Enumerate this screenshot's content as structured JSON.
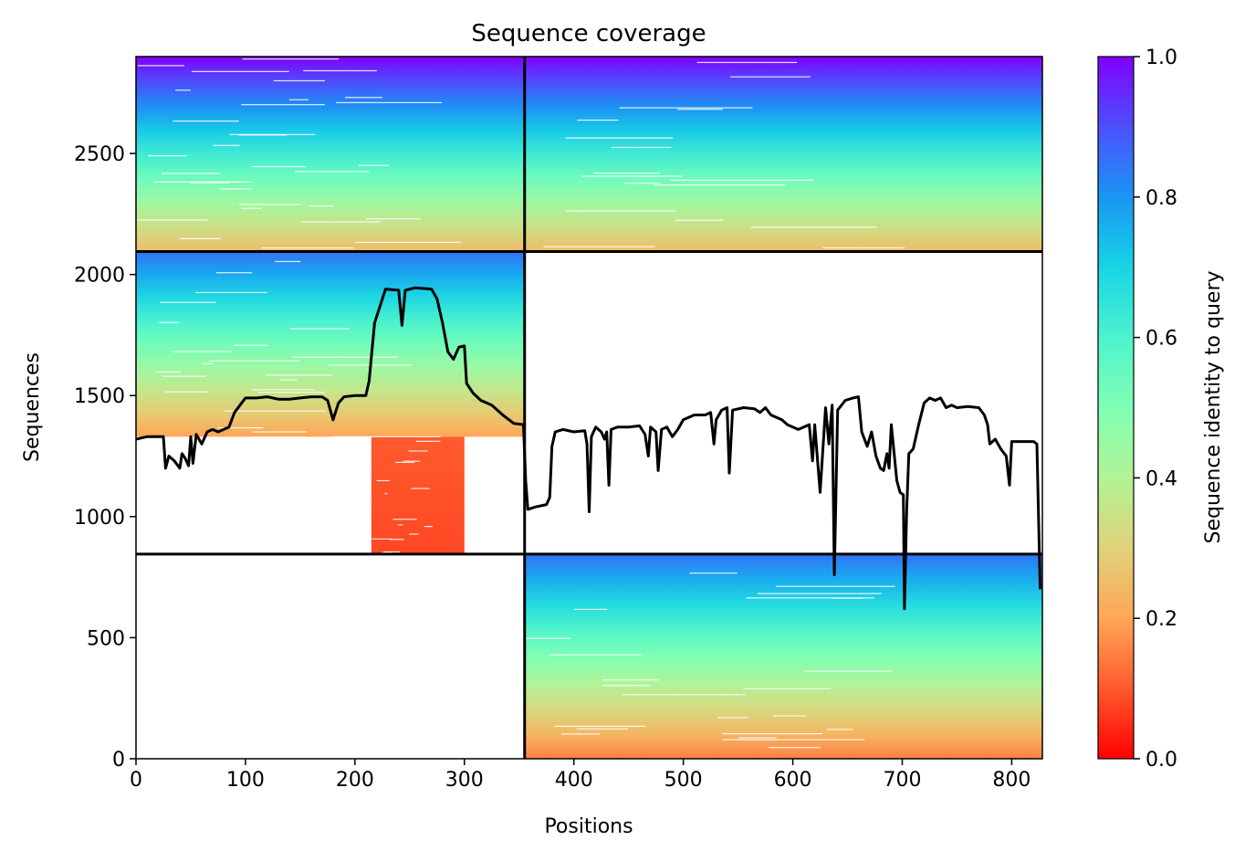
{
  "chart_data": {
    "type": "heatmap",
    "title": "Sequence coverage",
    "xlabel": "Positions",
    "ylabel": "Sequences",
    "xlim": [
      0,
      828
    ],
    "ylim": [
      0,
      2900
    ],
    "xticks": [
      0,
      100,
      200,
      300,
      400,
      500,
      600,
      700,
      800
    ],
    "yticks": [
      0,
      500,
      1000,
      1500,
      2000,
      2500
    ],
    "colormap": "rainbow",
    "colorbar": {
      "label": "Sequence identity to query",
      "range": [
        0,
        1
      ],
      "ticks": [
        0.0,
        0.2,
        0.4,
        0.6,
        0.8,
        1.0
      ],
      "tick_labels": [
        "0.0",
        "0.2",
        "0.4",
        "0.6",
        "0.8",
        "1.0"
      ]
    },
    "domain_boundaries": {
      "x": [
        355
      ],
      "y": [
        845,
        2095
      ]
    },
    "blocks": [
      {
        "x": [
          0,
          355
        ],
        "y": [
          2095,
          2900
        ],
        "identity_bottom": 0.25,
        "identity_top": 1.0
      },
      {
        "x": [
          355,
          828
        ],
        "y": [
          2095,
          2900
        ],
        "identity_bottom": 0.25,
        "identity_top": 1.0
      },
      {
        "x": [
          0,
          355
        ],
        "y": [
          1330,
          2095
        ],
        "identity_bottom": 0.2,
        "identity_top": 0.85
      },
      {
        "x": [
          215,
          300
        ],
        "y": [
          845,
          1330
        ],
        "identity_bottom": 0.08,
        "identity_top": 0.1
      },
      {
        "x": [
          355,
          828
        ],
        "y": [
          0,
          845
        ],
        "identity_bottom": 0.15,
        "identity_top": 0.85
      }
    ],
    "coverage_line": [
      [
        0,
        1320
      ],
      [
        10,
        1330
      ],
      [
        25,
        1330
      ],
      [
        27,
        1200
      ],
      [
        30,
        1250
      ],
      [
        35,
        1230
      ],
      [
        40,
        1200
      ],
      [
        42,
        1260
      ],
      [
        45,
        1240
      ],
      [
        48,
        1210
      ],
      [
        50,
        1330
      ],
      [
        52,
        1220
      ],
      [
        55,
        1340
      ],
      [
        60,
        1300
      ],
      [
        65,
        1350
      ],
      [
        70,
        1360
      ],
      [
        75,
        1350
      ],
      [
        80,
        1360
      ],
      [
        85,
        1370
      ],
      [
        90,
        1430
      ],
      [
        95,
        1460
      ],
      [
        100,
        1490
      ],
      [
        110,
        1490
      ],
      [
        120,
        1495
      ],
      [
        130,
        1485
      ],
      [
        140,
        1485
      ],
      [
        150,
        1490
      ],
      [
        160,
        1495
      ],
      [
        170,
        1495
      ],
      [
        175,
        1480
      ],
      [
        180,
        1400
      ],
      [
        185,
        1470
      ],
      [
        190,
        1495
      ],
      [
        200,
        1500
      ],
      [
        210,
        1500
      ],
      [
        213,
        1560
      ],
      [
        218,
        1800
      ],
      [
        228,
        1940
      ],
      [
        240,
        1935
      ],
      [
        243,
        1790
      ],
      [
        246,
        1935
      ],
      [
        255,
        1945
      ],
      [
        270,
        1940
      ],
      [
        275,
        1900
      ],
      [
        280,
        1800
      ],
      [
        285,
        1680
      ],
      [
        290,
        1650
      ],
      [
        295,
        1700
      ],
      [
        300,
        1705
      ],
      [
        302,
        1550
      ],
      [
        308,
        1510
      ],
      [
        315,
        1480
      ],
      [
        325,
        1460
      ],
      [
        335,
        1420
      ],
      [
        345,
        1385
      ],
      [
        354,
        1380
      ],
      [
        356,
        1150
      ],
      [
        358,
        1030
      ],
      [
        365,
        1040
      ],
      [
        375,
        1050
      ],
      [
        378,
        1080
      ],
      [
        380,
        1290
      ],
      [
        383,
        1350
      ],
      [
        390,
        1360
      ],
      [
        400,
        1350
      ],
      [
        410,
        1355
      ],
      [
        412,
        1300
      ],
      [
        414,
        1020
      ],
      [
        416,
        1330
      ],
      [
        420,
        1370
      ],
      [
        425,
        1350
      ],
      [
        428,
        1320
      ],
      [
        430,
        1350
      ],
      [
        432,
        1130
      ],
      [
        434,
        1360
      ],
      [
        440,
        1370
      ],
      [
        450,
        1370
      ],
      [
        460,
        1375
      ],
      [
        465,
        1340
      ],
      [
        468,
        1250
      ],
      [
        470,
        1370
      ],
      [
        475,
        1350
      ],
      [
        477,
        1190
      ],
      [
        480,
        1360
      ],
      [
        485,
        1370
      ],
      [
        490,
        1330
      ],
      [
        495,
        1360
      ],
      [
        500,
        1400
      ],
      [
        510,
        1420
      ],
      [
        520,
        1420
      ],
      [
        525,
        1430
      ],
      [
        528,
        1300
      ],
      [
        530,
        1400
      ],
      [
        535,
        1440
      ],
      [
        540,
        1450
      ],
      [
        542,
        1180
      ],
      [
        545,
        1440
      ],
      [
        555,
        1450
      ],
      [
        565,
        1445
      ],
      [
        570,
        1430
      ],
      [
        575,
        1450
      ],
      [
        580,
        1420
      ],
      [
        590,
        1400
      ],
      [
        595,
        1380
      ],
      [
        600,
        1370
      ],
      [
        605,
        1360
      ],
      [
        610,
        1370
      ],
      [
        615,
        1380
      ],
      [
        618,
        1230
      ],
      [
        620,
        1380
      ],
      [
        625,
        1100
      ],
      [
        630,
        1450
      ],
      [
        633,
        1300
      ],
      [
        636,
        1460
      ],
      [
        638,
        760
      ],
      [
        641,
        1440
      ],
      [
        648,
        1480
      ],
      [
        655,
        1490
      ],
      [
        660,
        1495
      ],
      [
        663,
        1350
      ],
      [
        668,
        1290
      ],
      [
        672,
        1350
      ],
      [
        676,
        1250
      ],
      [
        680,
        1200
      ],
      [
        683,
        1190
      ],
      [
        686,
        1260
      ],
      [
        688,
        1200
      ],
      [
        690,
        1380
      ],
      [
        695,
        1150
      ],
      [
        698,
        1100
      ],
      [
        701,
        1090
      ],
      [
        702,
        620
      ],
      [
        704,
        1020
      ],
      [
        706,
        1260
      ],
      [
        710,
        1280
      ],
      [
        715,
        1380
      ],
      [
        720,
        1470
      ],
      [
        725,
        1490
      ],
      [
        730,
        1480
      ],
      [
        735,
        1490
      ],
      [
        740,
        1450
      ],
      [
        745,
        1460
      ],
      [
        750,
        1450
      ],
      [
        760,
        1455
      ],
      [
        770,
        1450
      ],
      [
        775,
        1420
      ],
      [
        778,
        1380
      ],
      [
        780,
        1300
      ],
      [
        785,
        1320
      ],
      [
        790,
        1280
      ],
      [
        795,
        1250
      ],
      [
        798,
        1130
      ],
      [
        800,
        1310
      ],
      [
        810,
        1310
      ],
      [
        820,
        1310
      ],
      [
        823,
        1300
      ],
      [
        826,
        700
      ]
    ]
  }
}
